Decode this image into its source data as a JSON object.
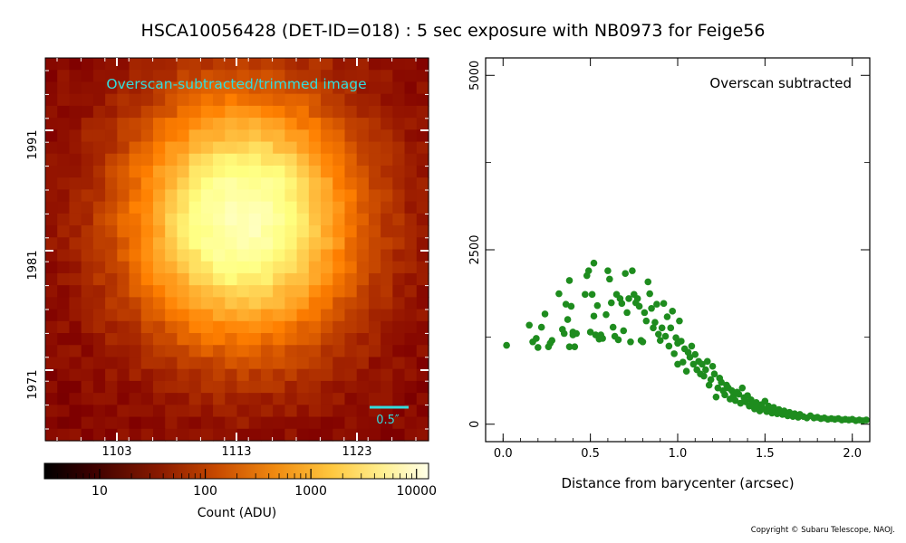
{
  "title": "HSCA10056428 (DET-ID=018) :  5 sec exposure with NB0973 for Feige56",
  "copyright": "Copyright © Subaru Telescope, NAOJ.",
  "colors": {
    "image_label": "#33dddd",
    "scatter": "#1e8c1e",
    "scale_bar": "#33dddd"
  },
  "chart_data": [
    {
      "type": "heatmap",
      "annotation": "Overscan-subtracted/trimmed image",
      "colormap": "afmhot",
      "xticks": [
        "1103",
        "1113",
        "1123"
      ],
      "yticks": [
        "1991",
        "1981",
        "1971"
      ],
      "scale_bar_label": "0.5″",
      "colorbar": {
        "scale": "log",
        "range": [
          3,
          13000
        ],
        "ticks": [
          "10",
          "100",
          "1000",
          "10000"
        ],
        "label": "Count (ADU)"
      }
    },
    {
      "type": "scatter",
      "annotation": "Overscan subtracted",
      "xlabel": "Distance from barycenter (arcsec)",
      "ylabel": "",
      "xlim": [
        -0.1,
        2.1
      ],
      "ylim": [
        -250,
        5250
      ],
      "xticks": [
        "0.0",
        "0.5",
        "1.0",
        "1.5",
        "2.0"
      ],
      "yticks": [
        "0",
        "2500",
        "5000"
      ],
      "points": [
        [
          0.02,
          1130
        ],
        [
          0.15,
          1420
        ],
        [
          0.17,
          1180
        ],
        [
          0.19,
          1230
        ],
        [
          0.2,
          1100
        ],
        [
          0.22,
          1390
        ],
        [
          0.24,
          1580
        ],
        [
          0.26,
          1110
        ],
        [
          0.27,
          1160
        ],
        [
          0.28,
          1200
        ],
        [
          0.32,
          1870
        ],
        [
          0.34,
          1360
        ],
        [
          0.35,
          1300
        ],
        [
          0.36,
          1720
        ],
        [
          0.37,
          1500
        ],
        [
          0.38,
          2060
        ],
        [
          0.38,
          1110
        ],
        [
          0.39,
          1690
        ],
        [
          0.4,
          1280
        ],
        [
          0.4,
          1320
        ],
        [
          0.41,
          1110
        ],
        [
          0.42,
          1300
        ],
        [
          0.47,
          1860
        ],
        [
          0.48,
          2130
        ],
        [
          0.49,
          2200
        ],
        [
          0.5,
          1320
        ],
        [
          0.51,
          1860
        ],
        [
          0.52,
          2310
        ],
        [
          0.52,
          1550
        ],
        [
          0.53,
          1280
        ],
        [
          0.54,
          1700
        ],
        [
          0.55,
          1220
        ],
        [
          0.56,
          1280
        ],
        [
          0.57,
          1230
        ],
        [
          0.59,
          1570
        ],
        [
          0.6,
          2200
        ],
        [
          0.61,
          2080
        ],
        [
          0.62,
          1740
        ],
        [
          0.63,
          1390
        ],
        [
          0.64,
          1260
        ],
        [
          0.65,
          1860
        ],
        [
          0.66,
          1210
        ],
        [
          0.67,
          1800
        ],
        [
          0.68,
          1730
        ],
        [
          0.69,
          1340
        ],
        [
          0.7,
          2160
        ],
        [
          0.71,
          1600
        ],
        [
          0.72,
          1800
        ],
        [
          0.73,
          1180
        ],
        [
          0.74,
          2200
        ],
        [
          0.75,
          1860
        ],
        [
          0.76,
          1740
        ],
        [
          0.77,
          1800
        ],
        [
          0.78,
          1690
        ],
        [
          0.79,
          1200
        ],
        [
          0.8,
          1180
        ],
        [
          0.81,
          1600
        ],
        [
          0.82,
          1480
        ],
        [
          0.83,
          2040
        ],
        [
          0.84,
          1870
        ],
        [
          0.85,
          1660
        ],
        [
          0.86,
          1380
        ],
        [
          0.87,
          1460
        ],
        [
          0.88,
          1720
        ],
        [
          0.89,
          1290
        ],
        [
          0.9,
          1200
        ],
        [
          0.91,
          1380
        ],
        [
          0.92,
          1730
        ],
        [
          0.93,
          1260
        ],
        [
          0.94,
          1540
        ],
        [
          0.95,
          1120
        ],
        [
          0.96,
          1380
        ],
        [
          0.97,
          1620
        ],
        [
          0.98,
          1010
        ],
        [
          0.99,
          1240
        ],
        [
          1.0,
          860
        ],
        [
          1.0,
          1160
        ],
        [
          1.01,
          1480
        ],
        [
          1.02,
          1190
        ],
        [
          1.03,
          890
        ],
        [
          1.04,
          1080
        ],
        [
          1.05,
          760
        ],
        [
          1.06,
          1030
        ],
        [
          1.07,
          960
        ],
        [
          1.08,
          1120
        ],
        [
          1.09,
          860
        ],
        [
          1.1,
          1000
        ],
        [
          1.11,
          780
        ],
        [
          1.12,
          900
        ],
        [
          1.13,
          720
        ],
        [
          1.14,
          860
        ],
        [
          1.15,
          690
        ],
        [
          1.16,
          780
        ],
        [
          1.17,
          900
        ],
        [
          1.18,
          560
        ],
        [
          1.19,
          640
        ],
        [
          1.2,
          830
        ],
        [
          1.21,
          720
        ],
        [
          1.22,
          390
        ],
        [
          1.23,
          520
        ],
        [
          1.24,
          660
        ],
        [
          1.25,
          600
        ],
        [
          1.26,
          480
        ],
        [
          1.27,
          420
        ],
        [
          1.28,
          560
        ],
        [
          1.29,
          520
        ],
        [
          1.3,
          360
        ],
        [
          1.31,
          480
        ],
        [
          1.32,
          410
        ],
        [
          1.33,
          340
        ],
        [
          1.34,
          460
        ],
        [
          1.35,
          430
        ],
        [
          1.36,
          300
        ],
        [
          1.37,
          520
        ],
        [
          1.38,
          380
        ],
        [
          1.39,
          320
        ],
        [
          1.4,
          410
        ],
        [
          1.41,
          260
        ],
        [
          1.42,
          350
        ],
        [
          1.43,
          300
        ],
        [
          1.44,
          220
        ],
        [
          1.45,
          310
        ],
        [
          1.46,
          250
        ],
        [
          1.47,
          190
        ],
        [
          1.48,
          280
        ],
        [
          1.49,
          220
        ],
        [
          1.5,
          330
        ],
        [
          1.51,
          180
        ],
        [
          1.52,
          260
        ],
        [
          1.53,
          200
        ],
        [
          1.54,
          160
        ],
        [
          1.55,
          240
        ],
        [
          1.56,
          190
        ],
        [
          1.57,
          150
        ],
        [
          1.58,
          210
        ],
        [
          1.59,
          170
        ],
        [
          1.6,
          140
        ],
        [
          1.61,
          190
        ],
        [
          1.62,
          150
        ],
        [
          1.63,
          120
        ],
        [
          1.64,
          170
        ],
        [
          1.65,
          130
        ],
        [
          1.66,
          110
        ],
        [
          1.67,
          150
        ],
        [
          1.68,
          120
        ],
        [
          1.69,
          100
        ],
        [
          1.7,
          140
        ],
        [
          1.72,
          110
        ],
        [
          1.74,
          90
        ],
        [
          1.76,
          120
        ],
        [
          1.78,
          90
        ],
        [
          1.8,
          100
        ],
        [
          1.82,
          80
        ],
        [
          1.84,
          90
        ],
        [
          1.86,
          70
        ],
        [
          1.88,
          80
        ],
        [
          1.9,
          70
        ],
        [
          1.92,
          80
        ],
        [
          1.94,
          60
        ],
        [
          1.96,
          70
        ],
        [
          1.98,
          60
        ],
        [
          2.0,
          70
        ],
        [
          2.02,
          50
        ],
        [
          2.04,
          60
        ],
        [
          2.06,
          50
        ],
        [
          2.08,
          60
        ]
      ]
    }
  ]
}
